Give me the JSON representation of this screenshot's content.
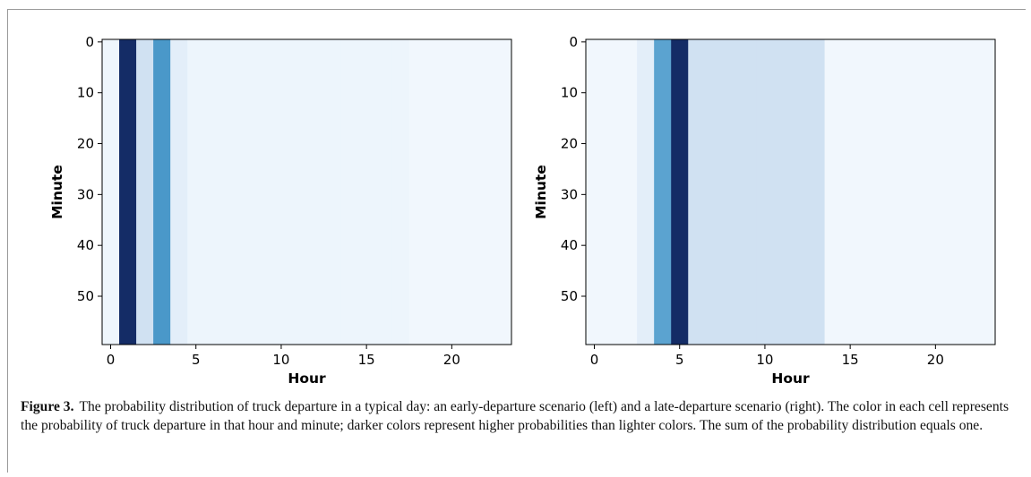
{
  "chart_data": [
    {
      "type": "heatmap",
      "xlabel": "Hour",
      "ylabel": "Minute",
      "x_ticks": [
        0,
        5,
        10,
        15,
        20
      ],
      "y_ticks": [
        0,
        10,
        20,
        30,
        40,
        50
      ],
      "xlim": [
        -0.5,
        23.5
      ],
      "ylim": [
        59.5,
        -0.5
      ],
      "colormap": "Blues",
      "hour_intensity": [
        0.04,
        1.0,
        0.2,
        0.6,
        0.1,
        0.05,
        0.05,
        0.05,
        0.05,
        0.05,
        0.05,
        0.05,
        0.05,
        0.05,
        0.05,
        0.05,
        0.05,
        0.05,
        0.03,
        0.03,
        0.03,
        0.03,
        0.03,
        0.03
      ]
    },
    {
      "type": "heatmap",
      "xlabel": "Hour",
      "ylabel": "Minute",
      "x_ticks": [
        0,
        5,
        10,
        15,
        20
      ],
      "y_ticks": [
        0,
        10,
        20,
        30,
        40,
        50
      ],
      "xlim": [
        -0.5,
        23.5
      ],
      "ylim": [
        59.5,
        -0.5
      ],
      "colormap": "Blues",
      "hour_intensity": [
        0.03,
        0.03,
        0.03,
        0.1,
        0.55,
        1.0,
        0.2,
        0.2,
        0.2,
        0.2,
        0.2,
        0.2,
        0.2,
        0.2,
        0.03,
        0.03,
        0.03,
        0.03,
        0.03,
        0.03,
        0.03,
        0.03,
        0.03,
        0.03
      ]
    }
  ],
  "caption": {
    "label": "Figure 3.",
    "text": "The probability distribution of truck departure in a typical day: an early-departure scenario (left) and a late-departure scenario (right). The color in each cell represents the probability of truck departure in that hour and minute; darker colors represent higher probabilities than lighter colors. The sum of the probability distribution equals one."
  }
}
